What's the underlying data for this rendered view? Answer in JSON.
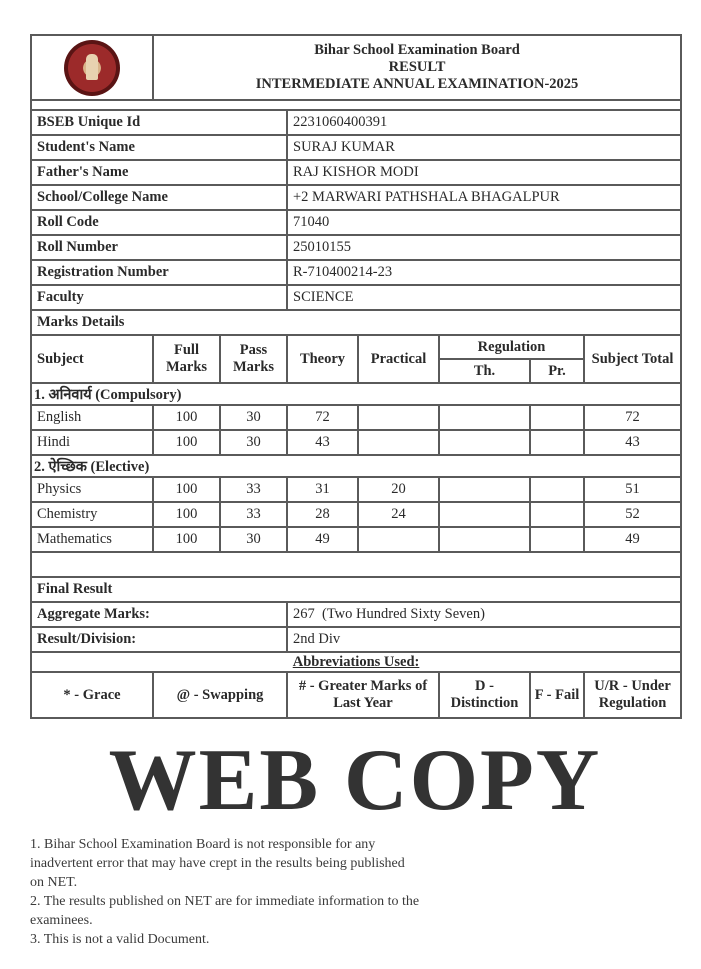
{
  "header": {
    "board": "Bihar School Examination Board",
    "result": "RESULT",
    "exam": "INTERMEDIATE ANNUAL EXAMINATION-2025",
    "logo": "bseb-seal-logo"
  },
  "info": [
    {
      "label": "BSEB Unique Id",
      "value": "2231060400391"
    },
    {
      "label": "Student's Name",
      "value": "SURAJ KUMAR"
    },
    {
      "label": "Father's Name",
      "value": "RAJ KISHOR MODI"
    },
    {
      "label": "School/College Name",
      "value": "+2 MARWARI PATHSHALA BHAGALPUR"
    },
    {
      "label": "Roll Code",
      "value": "71040"
    },
    {
      "label": "Roll Number",
      "value": "25010155"
    },
    {
      "label": "Registration Number",
      "value": "R-710400214-23"
    },
    {
      "label": "Faculty",
      "value": "SCIENCE"
    }
  ],
  "marks": {
    "title": "Marks Details",
    "columns": {
      "subject": "Subject",
      "full": "Full Marks",
      "pass": "Pass Marks",
      "theory": "Theory",
      "practical": "Practical",
      "regulation": "Regulation",
      "reg_th": "Th.",
      "reg_pr": "Pr.",
      "total": "Subject Total"
    },
    "compulsory_label": "1. अनिवार्य (Compulsory)",
    "compulsory": [
      {
        "subject": "English",
        "full": "100",
        "pass": "30",
        "theory": "72",
        "practical": "",
        "reg_th": "",
        "reg_pr": "",
        "total": "72"
      },
      {
        "subject": "Hindi",
        "full": "100",
        "pass": "30",
        "theory": "43",
        "practical": "",
        "reg_th": "",
        "reg_pr": "",
        "total": "43"
      }
    ],
    "elective_label": "2. ऐच्छिक (Elective)",
    "elective": [
      {
        "subject": "Physics",
        "full": "100",
        "pass": "33",
        "theory": "31",
        "practical": "20",
        "reg_th": "",
        "reg_pr": "",
        "total": "51"
      },
      {
        "subject": "Chemistry",
        "full": "100",
        "pass": "33",
        "theory": "28",
        "practical": "24",
        "reg_th": "",
        "reg_pr": "",
        "total": "52"
      },
      {
        "subject": "Mathematics",
        "full": "100",
        "pass": "30",
        "theory": "49",
        "practical": "",
        "reg_th": "",
        "reg_pr": "",
        "total": "49"
      }
    ]
  },
  "final": {
    "title": "Final Result",
    "aggregate_label": "Aggregate Marks:",
    "aggregate_value": "267  (Two Hundred Sixty Seven)",
    "division_label": "Result/Division:",
    "division_value": "2nd Div"
  },
  "abbreviations": {
    "title": "Abbreviations Used:",
    "items": [
      "* - Grace",
      "@ - Swapping",
      "# - Greater Marks of Last Year",
      "D - Distinction",
      "F - Fail",
      "U/R - Under Regulation"
    ]
  },
  "watermark": {
    "big": "WEB COPY",
    "lines": [
      "1. Bihar School Examination Board is not responsible for any",
      "inadvertent error that may have crept in the results being published",
      "on NET.",
      "2. The results published on NET are for immediate information to the",
      "examinees.",
      "3. This is not a valid Document."
    ]
  }
}
